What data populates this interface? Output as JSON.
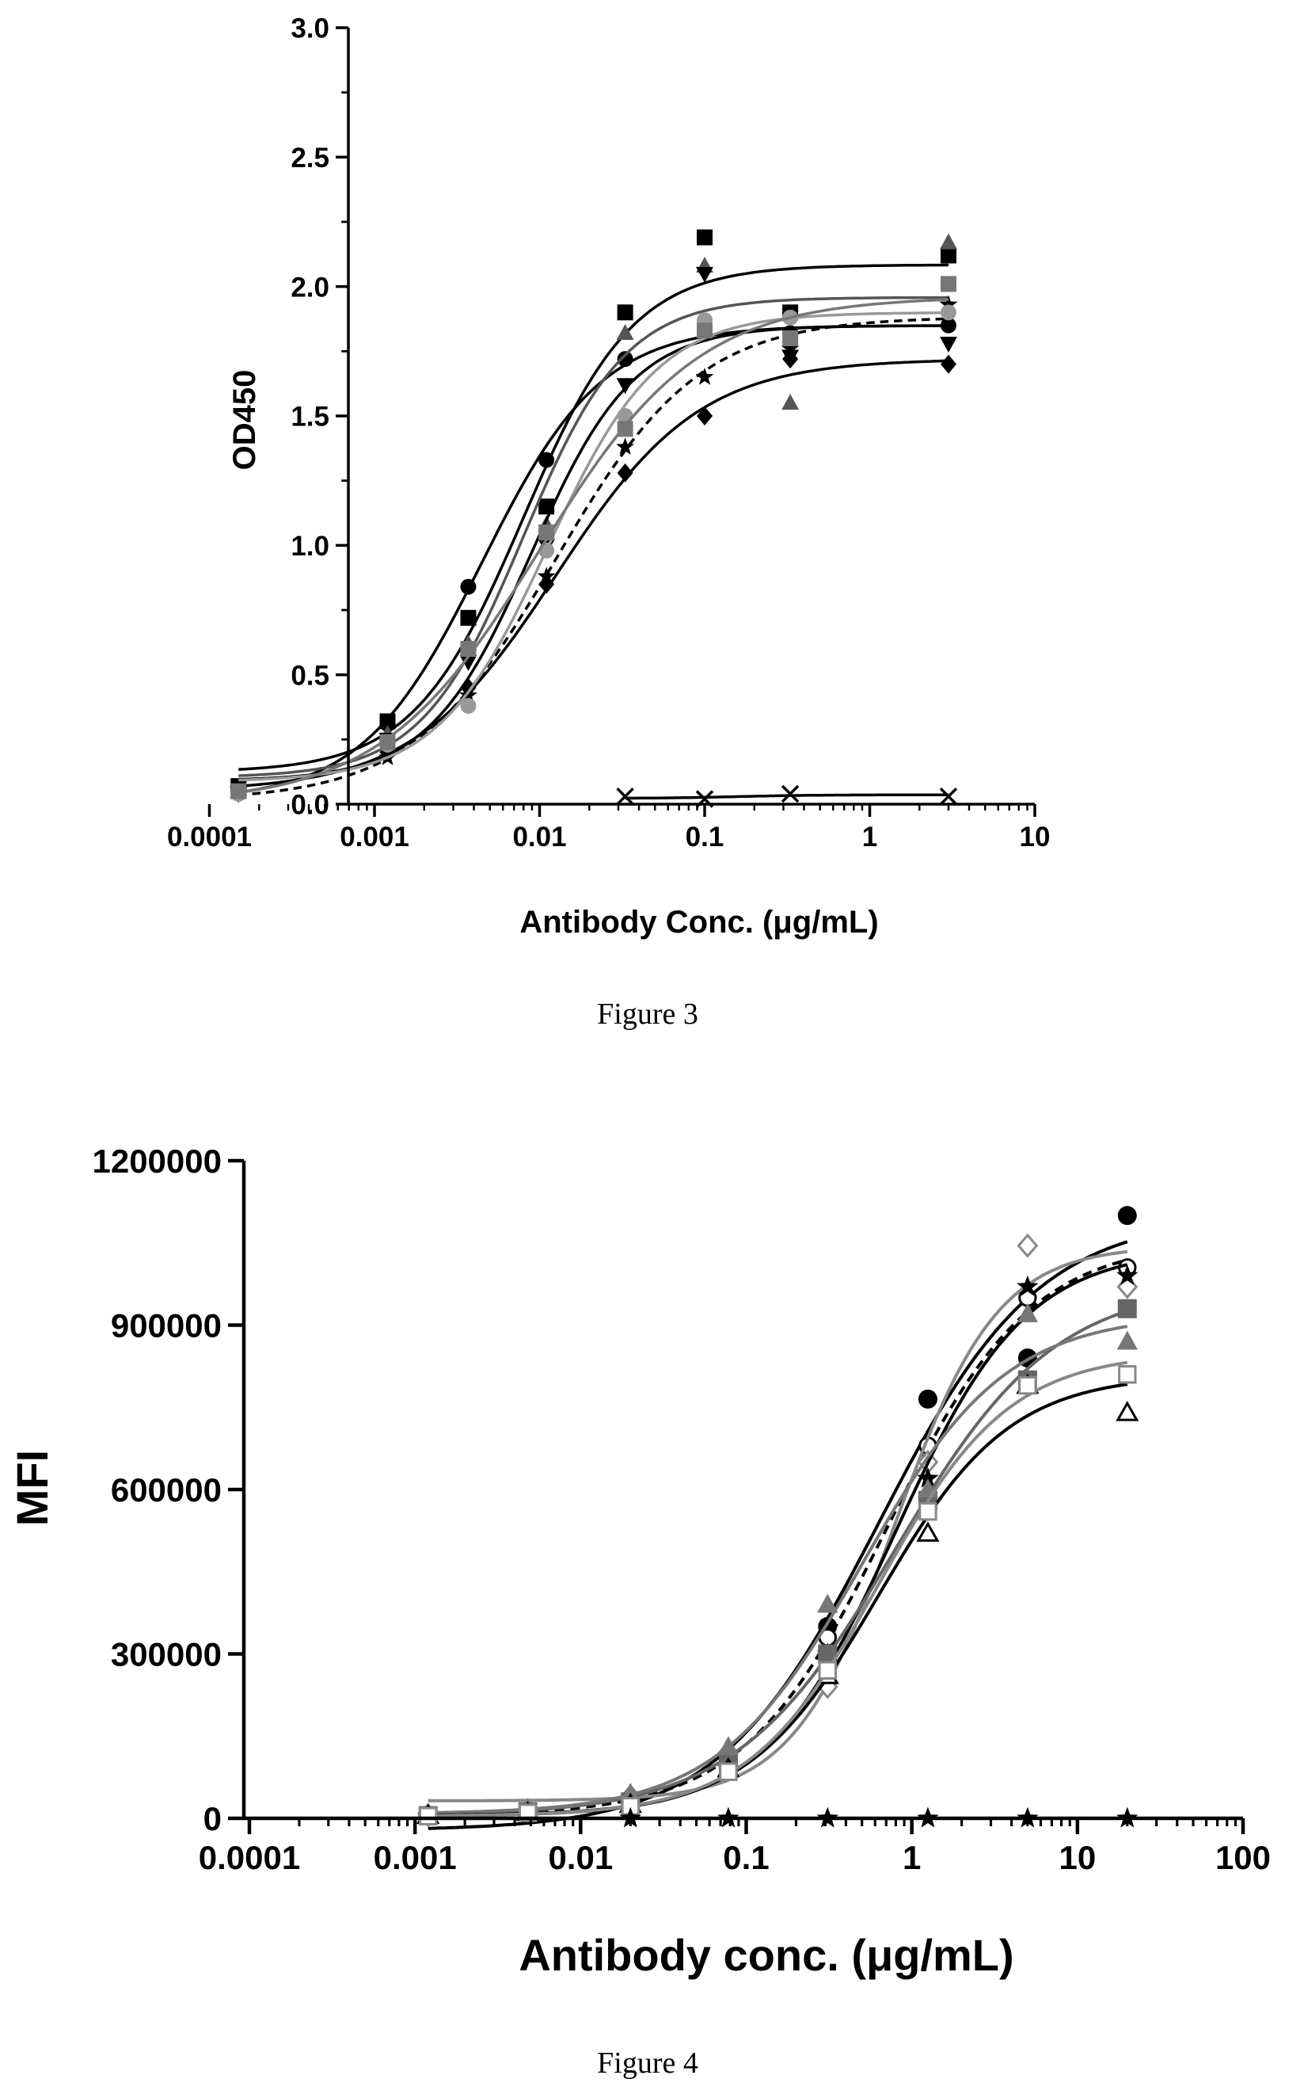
{
  "chart_data": [
    {
      "type": "scatter",
      "caption": "Figure 3",
      "title": "",
      "xlabel": "Antibody Conc. (μg/mL)",
      "ylabel": "OD450",
      "xscale": "log",
      "xlim": [
        0.0001,
        10
      ],
      "ylim": [
        0,
        3.0
      ],
      "xticks": [
        "0.0001",
        "0.001",
        "0.01",
        "0.1",
        "1",
        "10"
      ],
      "yticks": [
        "0.0",
        "0.5",
        "1.0",
        "1.5",
        "2.0",
        "2.5",
        "3.0"
      ],
      "grid": false,
      "legend": "none",
      "x": [
        0.00015,
        0.0012,
        0.0037,
        0.011,
        0.033,
        0.1,
        0.33,
        3
      ],
      "series": [
        {
          "color": "#000000",
          "marker": "square",
          "dash": false,
          "values": [
            0.07,
            0.32,
            0.72,
            1.15,
            1.9,
            2.19,
            1.9,
            2.12
          ]
        },
        {
          "color": "#000000",
          "marker": "circle",
          "dash": false,
          "values": [
            0.06,
            0.31,
            0.84,
            1.33,
            1.72,
            1.85,
            1.82,
            1.85
          ]
        },
        {
          "color": "#555555",
          "marker": "triangle",
          "dash": false,
          "values": [
            0.05,
            0.27,
            0.62,
            1.08,
            1.82,
            2.08,
            1.55,
            2.17
          ]
        },
        {
          "color": "#000000",
          "marker": "triangle-down",
          "dash": false,
          "values": [
            0.04,
            0.25,
            0.55,
            1.0,
            1.62,
            2.05,
            1.73,
            1.78
          ]
        },
        {
          "color": "#000000",
          "marker": "diamond",
          "dash": false,
          "values": [
            0.05,
            0.2,
            0.45,
            0.85,
            1.28,
            1.5,
            1.72,
            1.7
          ]
        },
        {
          "color": "#000000",
          "marker": "star",
          "dash": true,
          "values": [
            0.06,
            0.18,
            0.42,
            0.88,
            1.38,
            1.65,
            1.76,
            1.93
          ]
        },
        {
          "color": "#999999",
          "marker": "circle",
          "dash": false,
          "values": [
            0.04,
            0.23,
            0.38,
            0.98,
            1.5,
            1.87,
            1.88,
            1.9
          ]
        },
        {
          "color": "#777777",
          "marker": "square",
          "dash": false,
          "values": [
            0.05,
            0.24,
            0.6,
            1.05,
            1.45,
            1.83,
            1.8,
            2.01
          ]
        },
        {
          "color": "#000000",
          "marker": "x",
          "dash": false,
          "values": [
            null,
            null,
            null,
            null,
            0.03,
            0.02,
            0.04,
            0.03
          ]
        }
      ]
    },
    {
      "type": "scatter",
      "caption": "Figure 4",
      "title": "",
      "xlabel": "Antibody conc. (μg/mL)",
      "ylabel": "MFI",
      "xscale": "log",
      "xlim": [
        0.0001,
        100
      ],
      "ylim": [
        0,
        1200000
      ],
      "xticks": [
        "0.0001",
        "0.001",
        "0.01",
        "0.1",
        "1",
        "10",
        "100"
      ],
      "yticks": [
        "0",
        "300000",
        "600000",
        "900000",
        "1200000"
      ],
      "grid": false,
      "legend": "none",
      "x": [
        0.0012,
        0.0048,
        0.02,
        0.078,
        0.31,
        1.25,
        5,
        20
      ],
      "series": [
        {
          "color": "#000000",
          "marker": "circle",
          "dash": false,
          "values": [
            5000,
            10000,
            30000,
            100000,
            350000,
            765000,
            840000,
            1100000
          ]
        },
        {
          "color": "#000000",
          "marker": "open-circle",
          "dash": true,
          "values": [
            5000,
            12000,
            35000,
            110000,
            330000,
            680000,
            950000,
            1005000
          ]
        },
        {
          "color": "#888888",
          "marker": "open-diamond",
          "dash": false,
          "values": [
            6000,
            15000,
            40000,
            120000,
            240000,
            650000,
            1045000,
            970000
          ]
        },
        {
          "color": "#000000",
          "marker": "star",
          "dash": false,
          "values": [
            4000,
            10000,
            25000,
            90000,
            300000,
            620000,
            970000,
            990000
          ]
        },
        {
          "color": "#666666",
          "marker": "square",
          "dash": false,
          "values": [
            5000,
            12000,
            30000,
            100000,
            300000,
            580000,
            800000,
            930000
          ]
        },
        {
          "color": "#777777",
          "marker": "triangle",
          "dash": false,
          "values": [
            8000,
            16000,
            45000,
            130000,
            390000,
            600000,
            920000,
            870000
          ]
        },
        {
          "color": "#000000",
          "marker": "open-triangle",
          "dash": false,
          "values": [
            5000,
            10000,
            25000,
            90000,
            260000,
            520000,
            790000,
            740000
          ]
        },
        {
          "color": "#888888",
          "marker": "open-square",
          "dash": false,
          "values": [
            4000,
            10000,
            22000,
            85000,
            270000,
            560000,
            790000,
            810000
          ]
        },
        {
          "color": "#000000",
          "marker": "star",
          "dash": false,
          "values": [
            null,
            null,
            0,
            0,
            0,
            0,
            0,
            0
          ]
        }
      ]
    }
  ]
}
